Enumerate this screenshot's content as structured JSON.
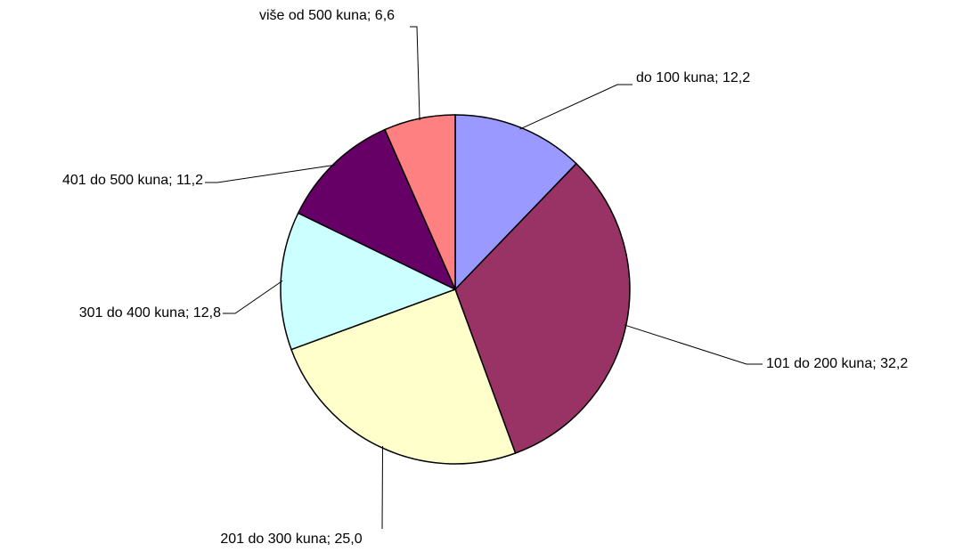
{
  "chart_data": {
    "type": "pie",
    "values": [
      12.2,
      32.2,
      25.0,
      12.8,
      11.2,
      6.6
    ],
    "value_labels": [
      "do 100 kuna; 12,2",
      "101 do 200 kuna; 32,2",
      "201 do 300 kuna; 25,0",
      "301 do 400 kuna; 12,8",
      "401 do 500 kuna; 11,2",
      "više od 500 kuna; 6,6"
    ],
    "colors": [
      "#9999ff",
      "#993366",
      "#ffffcc",
      "#ccffff",
      "#660066",
      "#ff8080"
    ]
  }
}
